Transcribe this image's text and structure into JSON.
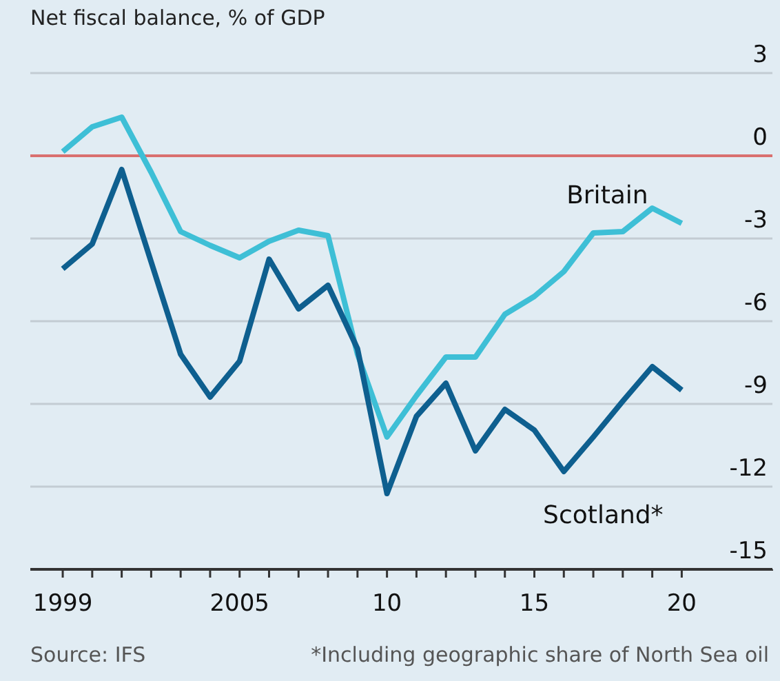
{
  "chart_data": {
    "type": "line",
    "title": "Net fiscal balance, % of GDP",
    "x": [
      1999,
      2000,
      2001,
      2002,
      2003,
      2004,
      2005,
      2006,
      2007,
      2008,
      2009,
      2010,
      2011,
      2012,
      2013,
      2014,
      2015,
      2016,
      2017,
      2018,
      2019,
      2020
    ],
    "series": [
      {
        "name": "Britain",
        "color": "#3ebfd6",
        "values": [
          0.15,
          1.05,
          1.4,
          -0.6,
          -2.75,
          -3.25,
          -3.7,
          -3.1,
          -2.7,
          -2.9,
          -7.2,
          -10.2,
          -8.7,
          -7.3,
          -7.3,
          -5.75,
          -5.1,
          -4.2,
          -2.8,
          -2.75,
          -1.9,
          -2.45
        ]
      },
      {
        "name": "Scotland*",
        "color": "#0e5f8f",
        "values": [
          -4.1,
          -3.2,
          -0.5,
          -3.85,
          -7.2,
          -8.75,
          -7.45,
          -3.75,
          -5.55,
          -4.7,
          -7.0,
          -12.25,
          -9.45,
          -8.25,
          -10.7,
          -9.2,
          -9.95,
          -11.45,
          -10.2,
          -8.9,
          -7.65,
          -8.5
        ]
      }
    ],
    "xlim": [
      1997.9,
      2023.1
    ],
    "xticks": [
      {
        "value": 1999,
        "label": "1999"
      },
      {
        "value": 2000,
        "label": null
      },
      {
        "value": 2001,
        "label": null
      },
      {
        "value": 2002,
        "label": null
      },
      {
        "value": 2003,
        "label": null
      },
      {
        "value": 2004,
        "label": null
      },
      {
        "value": 2005,
        "label": "2005"
      },
      {
        "value": 2006,
        "label": null
      },
      {
        "value": 2007,
        "label": null
      },
      {
        "value": 2008,
        "label": null
      },
      {
        "value": 2009,
        "label": null
      },
      {
        "value": 2010,
        "label": "10"
      },
      {
        "value": 2011,
        "label": null
      },
      {
        "value": 2012,
        "label": null
      },
      {
        "value": 2013,
        "label": null
      },
      {
        "value": 2014,
        "label": null
      },
      {
        "value": 2015,
        "label": "15"
      },
      {
        "value": 2016,
        "label": null
      },
      {
        "value": 2017,
        "label": null
      },
      {
        "value": 2018,
        "label": null
      },
      {
        "value": 2019,
        "label": null
      },
      {
        "value": 2020,
        "label": "20"
      }
    ],
    "ylim": [
      -15,
      3.6
    ],
    "yticks": [
      3,
      0,
      -3,
      -6,
      -9,
      -12,
      -15
    ],
    "grid": "y",
    "legend": false,
    "marker": "none",
    "line_style": "solid",
    "ref_lines": [
      {
        "axis": "y",
        "value": 0,
        "color": "#d9706f"
      }
    ],
    "annotations": [
      "Source: IFS",
      "*Including geographic share of North Sea oil"
    ]
  }
}
